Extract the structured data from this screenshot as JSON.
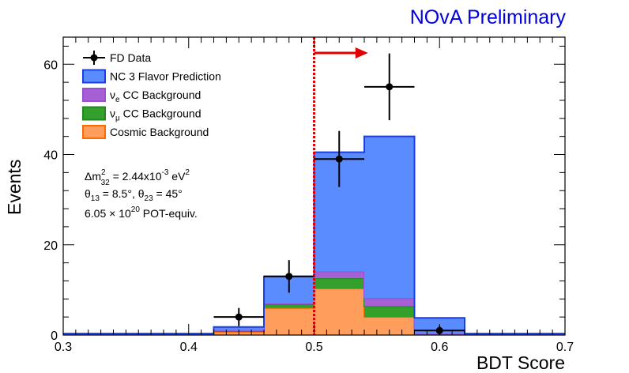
{
  "chart_data": {
    "type": "bar",
    "title": "NOvA Preliminary",
    "xlabel": "BDT Score",
    "ylabel": "Events",
    "xlim": [
      0.3,
      0.7
    ],
    "ylim": [
      0,
      66
    ],
    "x_ticks": [
      "0.3",
      "0.4",
      "0.5",
      "0.6",
      "0.7"
    ],
    "y_ticks": [
      "0",
      "20",
      "40",
      "60"
    ],
    "bin_edges": [
      0.3,
      0.34,
      0.38,
      0.42,
      0.46,
      0.5,
      0.54,
      0.58,
      0.62,
      0.66,
      0.7
    ],
    "stacked_series": [
      {
        "name": "Cosmic Background",
        "color": "#ff9d5c",
        "edge": "#ff6a00",
        "values": [
          0.3,
          0.3,
          0.3,
          0.7,
          6.0,
          10.3,
          4.0,
          0.3,
          0.3,
          0.3
        ]
      },
      {
        "name": "νμ CC Background",
        "color": "#33a02c",
        "edge": "#1f8a1f",
        "values": [
          0,
          0,
          0,
          0.2,
          0.8,
          2.3,
          2.4,
          0,
          0,
          0
        ]
      },
      {
        "name": "νe CC Background",
        "color": "#a65fd4",
        "edge": "#9b4fd0",
        "values": [
          0,
          0,
          0,
          0.1,
          0.2,
          1.5,
          1.8,
          0,
          0,
          0
        ]
      },
      {
        "name": "NC 3 Flavor Prediction",
        "color": "#5a8cff",
        "edge": "#1a3fe0",
        "values": [
          0,
          0,
          0,
          0.8,
          6.0,
          26.4,
          35.8,
          3.5,
          0,
          0
        ]
      }
    ],
    "data_points": {
      "name": "FD Data",
      "x": [
        0.44,
        0.48,
        0.52,
        0.56,
        0.6
      ],
      "y": [
        4,
        13,
        39,
        55,
        1
      ],
      "y_err": [
        2.0,
        3.6,
        6.2,
        7.4,
        1.0
      ],
      "x_err": 0.02
    },
    "cut_line": {
      "x": 0.5,
      "color": "#e00000",
      "arrow_to": 0.543
    },
    "legend": {
      "placement": "top-left",
      "entries": [
        {
          "label": "FD Data",
          "style": "marker"
        },
        {
          "label": "NC 3 Flavor Prediction",
          "fill": "#5a8cff",
          "edge": "#1a3fe0"
        },
        {
          "label": "CC Background",
          "prefix": "ν",
          "sub": "e",
          "fill": "#a65fd4",
          "edge": "#9b4fd0"
        },
        {
          "label": "CC Background",
          "prefix": "ν",
          "sub": "μ",
          "fill": "#33a02c",
          "edge": "#1f8a1f"
        },
        {
          "label": "Cosmic Background",
          "fill": "#ff9d5c",
          "edge": "#ff6a00"
        }
      ]
    },
    "annotations": {
      "line1": {
        "a": "Δm",
        "sup": "2",
        "sub": "32",
        "b": " = 2.44x10",
        "exp": "-3",
        "c": " eV",
        "sup2": "2"
      },
      "line2": {
        "a": "θ",
        "sub1": "13",
        "b": " = 8.5°, θ",
        "sub2": "23",
        "c": " = 45°"
      },
      "line3": {
        "a": "6.05 × 10",
        "exp": "20",
        "b": " POT-equiv."
      }
    },
    "title_color": "#0000e0",
    "grid": false
  }
}
